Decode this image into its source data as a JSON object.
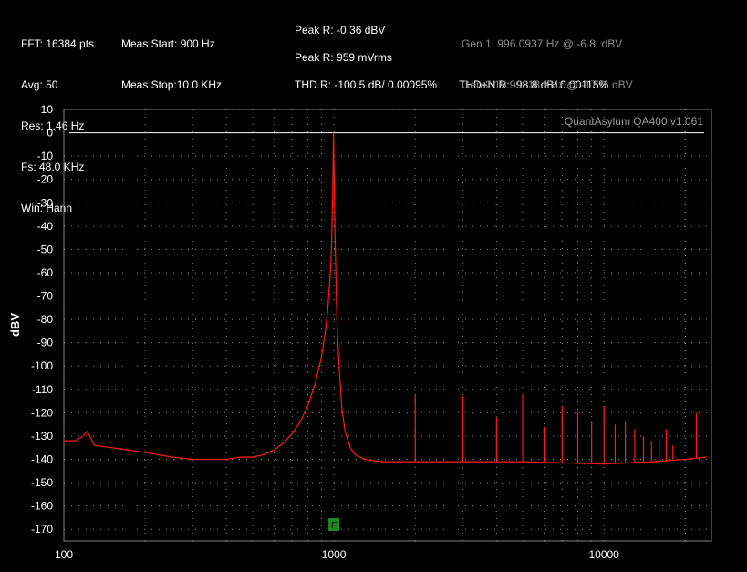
{
  "stats": {
    "fft": "FFT: 16384 pts",
    "avg": "Avg: 50",
    "res": "Res: 1.46 Hz",
    "fs": "Fs: 48.0 KHz",
    "win": "Win: Hann"
  },
  "meas": {
    "start": "Meas Start: 900 Hz",
    "stop": "Meas Stop:10.0 KHz"
  },
  "peak": {
    "dbv": "Peak R: -0.36 dBV",
    "vrms": "Peak R: 959 mVrms"
  },
  "thd": {
    "thd": "THD R: -100.5 dB/ 0.00095%",
    "thdn": "THD+N R: -98.8 dB/ 0.00115%"
  },
  "generators": {
    "gen1": "Gen 1: 996.0937 Hz @ -6.8  dBV",
    "gen2": "Gen 2:19.99218 KHz @ -17.0  dBV"
  },
  "watermark": "QuantAsylum QA400 v1.061",
  "marker": {
    "label": "F",
    "freq": 1000,
    "color": "#1f8a1f"
  },
  "colors": {
    "trace": "#ff1a1a",
    "grid": "#b0b0b0",
    "background": "#000000"
  },
  "chart_data": {
    "type": "line",
    "title": "",
    "xlabel": "",
    "ylabel": "dBV",
    "xscale": "log",
    "xlim": [
      100,
      25000
    ],
    "ylim": [
      -175,
      10
    ],
    "yticks": [
      10,
      0,
      -10,
      -20,
      -30,
      -40,
      -50,
      -60,
      -70,
      -80,
      -90,
      -100,
      -110,
      -120,
      -130,
      -140,
      -150,
      -160,
      -170
    ],
    "xticks": [
      100,
      1000,
      10000
    ],
    "xtick_labels": [
      "100",
      "1000",
      "10000"
    ],
    "grid": true,
    "series": [
      {
        "x": [
          100,
          110,
          118,
          122,
          130,
          150,
          200,
          250,
          300,
          350,
          400,
          450,
          500,
          550,
          600,
          650,
          700,
          750,
          800,
          850,
          900,
          930,
          950,
          970,
          980,
          990,
          996,
          1003,
          1012,
          1025,
          1045,
          1070,
          1100,
          1150,
          1200,
          1300,
          1500,
          2000,
          3000,
          5000,
          10000,
          15000,
          20000,
          24000
        ],
        "y": [
          -132,
          -132,
          -130,
          -128,
          -134,
          -135,
          -137,
          -139,
          -140,
          -140,
          -140,
          -139,
          -139,
          -138,
          -136,
          -133,
          -129,
          -124,
          -117,
          -108,
          -96,
          -85,
          -75,
          -60,
          -48,
          -25,
          0,
          -25,
          -50,
          -80,
          -100,
          -118,
          -128,
          -135,
          -138,
          -140,
          -141,
          -141,
          -141,
          -141,
          -142,
          -141,
          -140,
          -139
        ]
      }
    ],
    "harmonics": {
      "x": [
        2000,
        3000,
        4000,
        5000,
        6000,
        7000,
        8000,
        9000,
        10000,
        11000,
        12000,
        13000,
        14000,
        15000,
        16000,
        17000,
        18000,
        22000
      ],
      "y": [
        -112,
        -113,
        -122,
        -112,
        -126,
        -117,
        -119,
        -124,
        -117,
        -125,
        -124,
        -127,
        -130,
        -132,
        -131,
        -127,
        -134,
        -120
      ]
    }
  }
}
